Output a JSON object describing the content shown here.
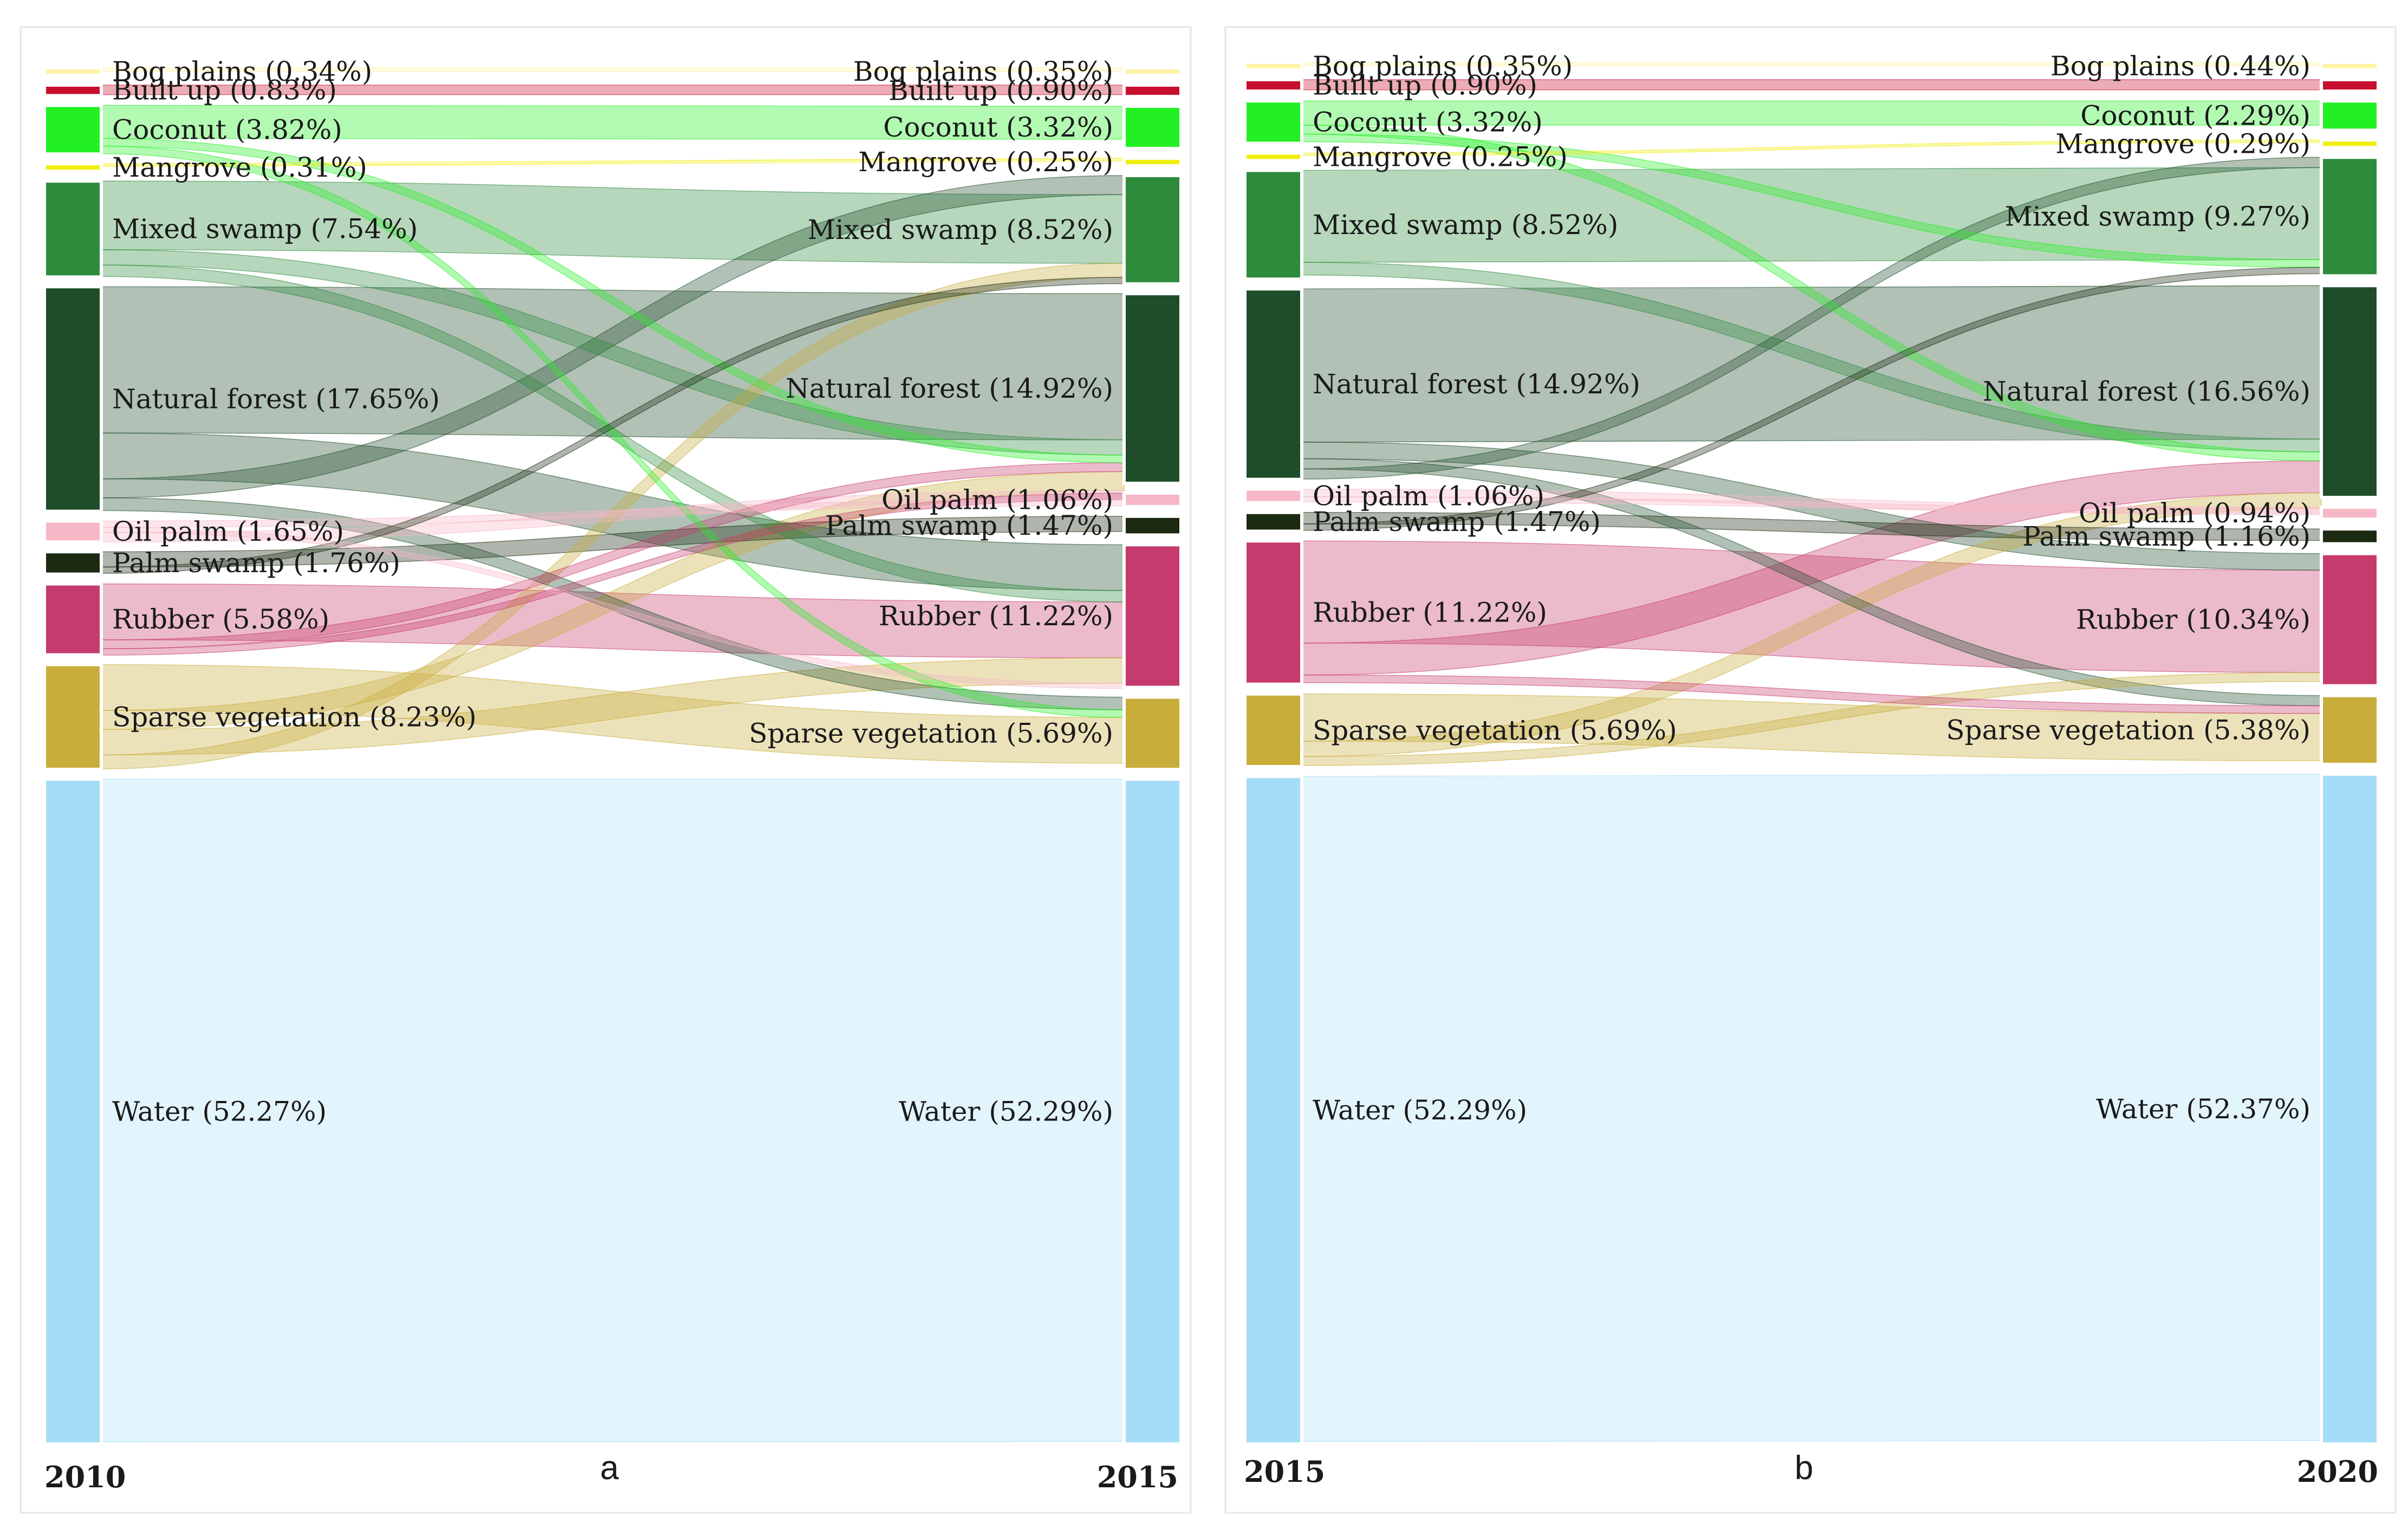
{
  "colors": {
    "Bog plains": "#fff3a6",
    "Built up": "#c8102e",
    "Coconut": "#22f022",
    "Mangrove": "#f2ee10",
    "Mixed swamp": "#2e8b3c",
    "Natural forest": "#1f4d2a",
    "Oil palm": "#f6b8c6",
    "Palm swamp": "#1b2a10",
    "Rubber": "#c63b6d",
    "Sparse vegetation": "#c9ad3a",
    "Water": "#a5dcf7"
  },
  "panels": [
    {
      "id": "a",
      "letter": "a",
      "left_year": "2010",
      "right_year": "2015",
      "left_nodes": [
        {
          "name": "Bog plains",
          "label": "Bog plains (0.34%)",
          "pct": 0.34
        },
        {
          "name": "Built up",
          "label": "Built up (0.83%)",
          "pct": 0.83
        },
        {
          "name": "Coconut",
          "label": "Coconut (3.82%)",
          "pct": 3.82
        },
        {
          "name": "Mangrove",
          "label": "Mangrove (0.31%)",
          "pct": 0.31
        },
        {
          "name": "Mixed swamp",
          "label": "Mixed swamp (7.54%)",
          "pct": 7.54
        },
        {
          "name": "Natural forest",
          "label": "Natural forest (17.65%)",
          "pct": 17.65
        },
        {
          "name": "Oil palm",
          "label": "Oil palm (1.65%)",
          "pct": 1.65
        },
        {
          "name": "Palm swamp",
          "label": "Palm swamp (1.76%)",
          "pct": 1.76
        },
        {
          "name": "Rubber",
          "label": "Rubber (5.58%)",
          "pct": 5.58
        },
        {
          "name": "Sparse vegetation",
          "label": "Sparse vegetation (8.23%)",
          "pct": 8.23
        },
        {
          "name": "Water",
          "label": "Water (52.27%)",
          "pct": 52.27
        }
      ],
      "right_nodes": [
        {
          "name": "Bog plains",
          "label": "Bog plains (0.35%)",
          "pct": 0.35
        },
        {
          "name": "Built up",
          "label": "Built up (0.90%)",
          "pct": 0.9
        },
        {
          "name": "Coconut",
          "label": "Coconut (3.32%)",
          "pct": 3.32
        },
        {
          "name": "Mangrove",
          "label": "Mangrove (0.25%)",
          "pct": 0.25
        },
        {
          "name": "Mixed swamp",
          "label": "Mixed swamp (8.52%)",
          "pct": 8.52
        },
        {
          "name": "Natural forest",
          "label": "Natural forest (14.92%)",
          "pct": 14.92
        },
        {
          "name": "Oil palm",
          "label": "Oil palm (1.06%)",
          "pct": 1.06
        },
        {
          "name": "Palm swamp",
          "label": "Palm swamp (1.47%)",
          "pct": 1.47
        },
        {
          "name": "Rubber",
          "label": "Rubber (11.22%)",
          "pct": 11.22
        },
        {
          "name": "Sparse vegetation",
          "label": "Sparse vegetation (5.69%)",
          "pct": 5.69
        },
        {
          "name": "Water",
          "label": "Water (52.29%)",
          "pct": 52.29
        }
      ],
      "flows": [
        {
          "from": "Water",
          "to": "Water",
          "value": 52.1
        },
        {
          "from": "Natural forest",
          "to": "Natural forest",
          "value": 11.5
        },
        {
          "from": "Natural forest",
          "to": "Rubber",
          "value": 3.6
        },
        {
          "from": "Natural forest",
          "to": "Mixed swamp",
          "value": 1.5
        },
        {
          "from": "Natural forest",
          "to": "Sparse vegetation",
          "value": 1.0
        },
        {
          "from": "Mixed swamp",
          "to": "Mixed swamp",
          "value": 5.4
        },
        {
          "from": "Mixed swamp",
          "to": "Natural forest",
          "value": 1.2
        },
        {
          "from": "Mixed swamp",
          "to": "Rubber",
          "value": 0.9
        },
        {
          "from": "Coconut",
          "to": "Coconut",
          "value": 2.6
        },
        {
          "from": "Coconut",
          "to": "Natural forest",
          "value": 0.6
        },
        {
          "from": "Coconut",
          "to": "Sparse vegetation",
          "value": 0.6
        },
        {
          "from": "Rubber",
          "to": "Rubber",
          "value": 4.4
        },
        {
          "from": "Rubber",
          "to": "Natural forest",
          "value": 0.7
        },
        {
          "from": "Rubber",
          "to": "Oil palm",
          "value": 0.5
        },
        {
          "from": "Sparse vegetation",
          "to": "Sparse vegetation",
          "value": 3.6
        },
        {
          "from": "Sparse vegetation",
          "to": "Natural forest",
          "value": 1.5
        },
        {
          "from": "Sparse vegetation",
          "to": "Rubber",
          "value": 2.0
        },
        {
          "from": "Sparse vegetation",
          "to": "Mixed swamp",
          "value": 1.1
        },
        {
          "from": "Oil palm",
          "to": "Oil palm",
          "value": 0.5
        },
        {
          "from": "Oil palm",
          "to": "Rubber",
          "value": 0.4
        },
        {
          "from": "Oil palm",
          "to": "Natural forest",
          "value": 0.75
        },
        {
          "from": "Palm swamp",
          "to": "Palm swamp",
          "value": 1.2
        },
        {
          "from": "Palm swamp",
          "to": "Mixed swamp",
          "value": 0.5
        },
        {
          "from": "Built up",
          "to": "Built up",
          "value": 0.75
        },
        {
          "from": "Bog plains",
          "to": "Bog plains",
          "value": 0.3
        },
        {
          "from": "Mangrove",
          "to": "Mangrove",
          "value": 0.22
        }
      ]
    },
    {
      "id": "b",
      "letter": "b",
      "left_year": "2015",
      "right_year": "2020",
      "left_nodes": [
        {
          "name": "Bog plains",
          "label": "Bog plains (0.35%)",
          "pct": 0.35
        },
        {
          "name": "Built up",
          "label": "Built up (0.90%)",
          "pct": 0.9
        },
        {
          "name": "Coconut",
          "label": "Coconut (3.32%)",
          "pct": 3.32
        },
        {
          "name": "Mangrove",
          "label": "Mangrove (0.25%)",
          "pct": 0.25
        },
        {
          "name": "Mixed swamp",
          "label": "Mixed swamp (8.52%)",
          "pct": 8.52
        },
        {
          "name": "Natural forest",
          "label": "Natural forest (14.92%)",
          "pct": 14.92
        },
        {
          "name": "Oil palm",
          "label": "Oil palm (1.06%)",
          "pct": 1.06
        },
        {
          "name": "Palm swamp",
          "label": "Palm swamp (1.47%)",
          "pct": 1.47
        },
        {
          "name": "Rubber",
          "label": "Rubber (11.22%)",
          "pct": 11.22
        },
        {
          "name": "Sparse vegetation",
          "label": "Sparse vegetation (5.69%)",
          "pct": 5.69
        },
        {
          "name": "Water",
          "label": "Water (52.29%)",
          "pct": 52.29
        }
      ],
      "right_nodes": [
        {
          "name": "Bog plains",
          "label": "Bog plains (0.44%)",
          "pct": 0.44
        },
        {
          "name": "Built up",
          "label": "",
          "pct": 0.9
        },
        {
          "name": "Coconut",
          "label": "Coconut (2.29%)",
          "pct": 2.29
        },
        {
          "name": "Mangrove",
          "label": "Mangrove (0.29%)",
          "pct": 0.29
        },
        {
          "name": "Mixed swamp",
          "label": "Mixed swamp (9.27%)",
          "pct": 9.27
        },
        {
          "name": "Natural forest",
          "label": "Natural forest (16.56%)",
          "pct": 16.56
        },
        {
          "name": "Oil palm",
          "label": "Oil palm (0.94%)",
          "pct": 0.94
        },
        {
          "name": "Palm swamp",
          "label": "Palm swamp (1.16%)",
          "pct": 1.16
        },
        {
          "name": "Rubber",
          "label": "Rubber (10.34%)",
          "pct": 10.34
        },
        {
          "name": "Sparse vegetation",
          "label": "Sparse vegetation (5.38%)",
          "pct": 5.38
        },
        {
          "name": "Water",
          "label": "Water (52.37%)",
          "pct": 52.37
        }
      ],
      "flows": [
        {
          "from": "Water",
          "to": "Water",
          "value": 52.1
        },
        {
          "from": "Natural forest",
          "to": "Natural forest",
          "value": 12.0
        },
        {
          "from": "Natural forest",
          "to": "Rubber",
          "value": 1.3
        },
        {
          "from": "Natural forest",
          "to": "Sparse vegetation",
          "value": 0.8
        },
        {
          "from": "Natural forest",
          "to": "Mixed swamp",
          "value": 0.8
        },
        {
          "from": "Mixed swamp",
          "to": "Mixed swamp",
          "value": 7.2
        },
        {
          "from": "Mixed swamp",
          "to": "Natural forest",
          "value": 1.0
        },
        {
          "from": "Coconut",
          "to": "Coconut",
          "value": 1.9
        },
        {
          "from": "Coconut",
          "to": "Natural forest",
          "value": 0.7
        },
        {
          "from": "Coconut",
          "to": "Mixed swamp",
          "value": 0.6
        },
        {
          "from": "Rubber",
          "to": "Rubber",
          "value": 8.0
        },
        {
          "from": "Rubber",
          "to": "Natural forest",
          "value": 2.5
        },
        {
          "from": "Rubber",
          "to": "Sparse vegetation",
          "value": 0.6
        },
        {
          "from": "Sparse vegetation",
          "to": "Sparse vegetation",
          "value": 3.7
        },
        {
          "from": "Sparse vegetation",
          "to": "Natural forest",
          "value": 1.2
        },
        {
          "from": "Sparse vegetation",
          "to": "Rubber",
          "value": 0.7
        },
        {
          "from": "Oil palm",
          "to": "Oil palm",
          "value": 0.6
        },
        {
          "from": "Oil palm",
          "to": "Natural forest",
          "value": 0.4
        },
        {
          "from": "Palm swamp",
          "to": "Palm swamp",
          "value": 0.9
        },
        {
          "from": "Palm swamp",
          "to": "Mixed swamp",
          "value": 0.5
        },
        {
          "from": "Built up",
          "to": "Built up",
          "value": 0.8
        },
        {
          "from": "Bog plains",
          "to": "Bog plains",
          "value": 0.3
        },
        {
          "from": "Mangrove",
          "to": "Mangrove",
          "value": 0.2
        }
      ]
    }
  ]
}
